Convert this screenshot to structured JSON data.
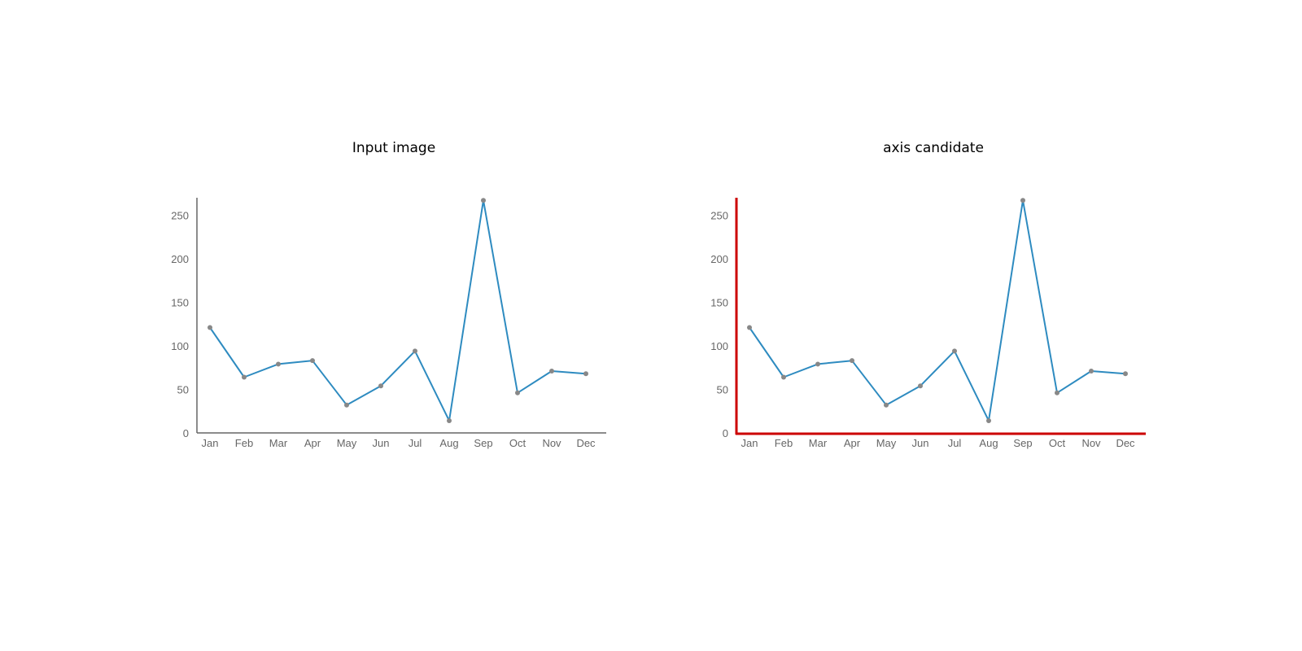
{
  "panels": [
    {
      "title": "Input image",
      "highlight_axes": false
    },
    {
      "title": "axis candidate",
      "highlight_axes": true
    }
  ],
  "colors": {
    "line": "#2e8bc0",
    "marker": "#888888",
    "axis": "#666666",
    "axis_highlight": "#cc0000",
    "tick_text": "#666666"
  },
  "chart_data": [
    {
      "type": "line",
      "title": "",
      "xlabel": "",
      "ylabel": "",
      "categories": [
        "Jan",
        "Feb",
        "Mar",
        "Apr",
        "May",
        "Jun",
        "Jul",
        "Aug",
        "Sep",
        "Oct",
        "Nov",
        "Dec"
      ],
      "values": [
        121,
        64,
        79,
        83,
        32,
        54,
        94,
        14,
        267,
        46,
        71,
        68
      ],
      "yticks": [
        0,
        50,
        100,
        150,
        200,
        250
      ],
      "ylim": [
        0,
        270
      ],
      "grid": false
    },
    {
      "type": "line",
      "title": "",
      "xlabel": "",
      "ylabel": "",
      "categories": [
        "Jan",
        "Feb",
        "Mar",
        "Apr",
        "May",
        "Jun",
        "Jul",
        "Aug",
        "Sep",
        "Oct",
        "Nov",
        "Dec"
      ],
      "values": [
        121,
        64,
        79,
        83,
        32,
        54,
        94,
        14,
        267,
        46,
        71,
        68
      ],
      "yticks": [
        0,
        50,
        100,
        150,
        200,
        250
      ],
      "ylim": [
        0,
        270
      ],
      "grid": false,
      "axis_highlight": true
    }
  ]
}
